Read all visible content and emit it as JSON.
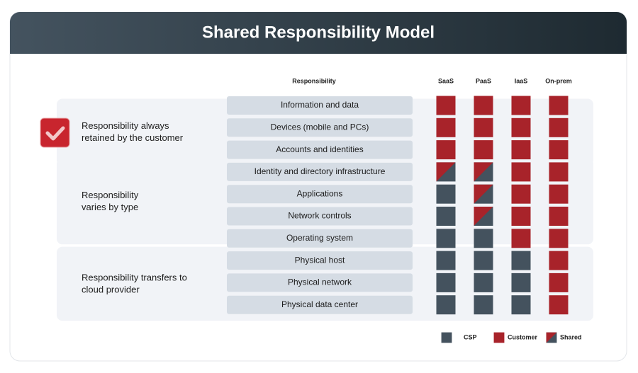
{
  "header": {
    "title": "Shared Responsibility Model"
  },
  "table": {
    "columns": {
      "label": "Responsibility",
      "models": [
        "SaaS",
        "PaaS",
        "IaaS",
        "On-prem"
      ]
    },
    "groups": [
      {
        "label_lines": [
          "Responsibility always",
          "retained by the customer"
        ],
        "rows": [
          {
            "label": "Information and data",
            "cells": [
              "Customer",
              "Customer",
              "Customer",
              "Customer"
            ]
          },
          {
            "label": "Devices (mobile and PCs)",
            "cells": [
              "Customer",
              "Customer",
              "Customer",
              "Customer"
            ]
          },
          {
            "label": "Accounts and identities",
            "cells": [
              "Customer",
              "Customer",
              "Customer",
              "Customer"
            ]
          }
        ]
      },
      {
        "label_lines": [
          "Responsibility",
          "varies by type"
        ],
        "rows": [
          {
            "label": "Identity and directory infrastructure",
            "cells": [
              "Shared",
              "Shared",
              "Customer",
              "Customer"
            ]
          },
          {
            "label": "Applications",
            "cells": [
              "CSP",
              "Shared",
              "Customer",
              "Customer"
            ]
          },
          {
            "label": "Network controls",
            "cells": [
              "CSP",
              "Shared",
              "Customer",
              "Customer"
            ]
          },
          {
            "label": "Operating system",
            "cells": [
              "CSP",
              "CSP",
              "Customer",
              "Customer"
            ]
          }
        ]
      },
      {
        "label_lines": [
          "Responsibility transfers to",
          "cloud provider"
        ],
        "rows": [
          {
            "label": "Physical host",
            "cells": [
              "CSP",
              "CSP",
              "CSP",
              "Customer"
            ]
          },
          {
            "label": "Physical network",
            "cells": [
              "CSP",
              "CSP",
              "CSP",
              "Customer"
            ]
          },
          {
            "label": "Physical data center",
            "cells": [
              "CSP",
              "CSP",
              "CSP",
              "Customer"
            ]
          }
        ]
      }
    ]
  },
  "legend": [
    "CSP",
    "Customer",
    "Shared"
  ]
}
